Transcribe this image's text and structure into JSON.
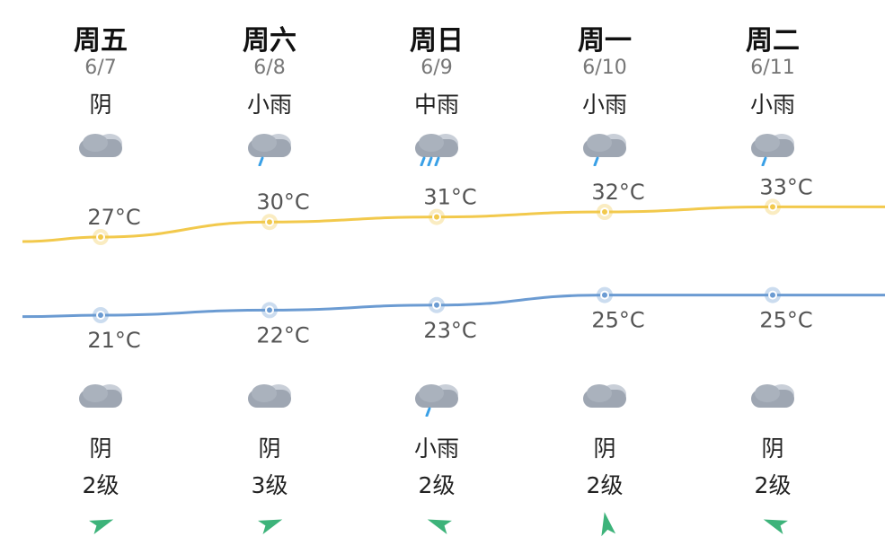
{
  "days": [
    {
      "weekday": "周五",
      "date": "6/7",
      "day_condition": "阴",
      "day_icon": "cloudy-icon",
      "high": "27°C",
      "low": "21°C",
      "night_icon": "cloudy-icon",
      "night_condition": "阴",
      "wind_level": "2级",
      "wind_rot": -20
    },
    {
      "weekday": "周六",
      "date": "6/8",
      "day_condition": "小雨",
      "day_icon": "light-rain-icon",
      "high": "30°C",
      "low": "22°C",
      "night_icon": "cloudy-icon",
      "night_condition": "阴",
      "wind_level": "3级",
      "wind_rot": -20
    },
    {
      "weekday": "周日",
      "date": "6/9",
      "day_condition": "中雨",
      "day_icon": "moderate-rain-icon",
      "high": "31°C",
      "low": "23°C",
      "night_icon": "light-rain-icon",
      "night_condition": "小雨",
      "wind_level": "2级",
      "wind_rot": -160
    },
    {
      "weekday": "周一",
      "date": "6/10",
      "day_condition": "小雨",
      "day_icon": "light-rain-icon",
      "high": "32°C",
      "low": "25°C",
      "night_icon": "cloudy-icon",
      "night_condition": "阴",
      "wind_level": "2级",
      "wind_rot": -100
    },
    {
      "weekday": "周二",
      "date": "6/11",
      "day_condition": "小雨",
      "day_icon": "light-rain-icon",
      "high": "33°C",
      "low": "25°C",
      "night_icon": "cloudy-icon",
      "night_condition": "阴",
      "wind_level": "2级",
      "wind_rot": -160
    }
  ],
  "chart_data": {
    "type": "line",
    "categories": [
      "6/7",
      "6/8",
      "6/9",
      "6/10",
      "6/11"
    ],
    "series": [
      {
        "values": [
          27,
          30,
          31,
          32,
          33
        ],
        "color": "#F2C94C"
      },
      {
        "values": [
          21,
          22,
          23,
          25,
          25
        ],
        "color": "#6B9BD2"
      }
    ]
  },
  "colors": {
    "high_line": "#F2C94C",
    "low_line": "#6B9BD2",
    "wind_arrow": "#3DB37A",
    "cloud": "#9EA6B2",
    "rain": "#3AA0E6"
  }
}
